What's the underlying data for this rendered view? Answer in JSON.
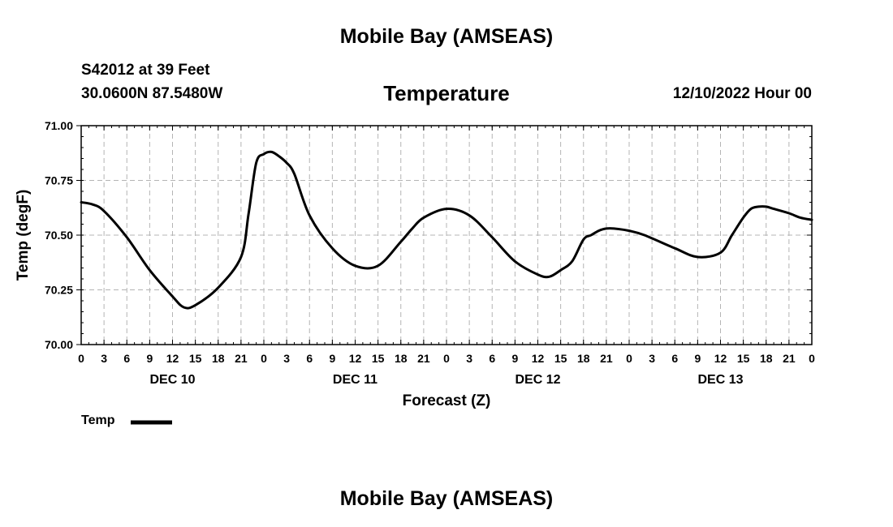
{
  "header": {
    "title": "Mobile Bay (AMSEAS)",
    "station": "S42012 at 39 Feet",
    "coords": "30.0600N  87.5480W",
    "forecast_time": "12/10/2022 Hour 00",
    "footer_title": "Mobile Bay (AMSEAS)"
  },
  "chart_data": {
    "type": "line",
    "title": "Temperature",
    "xlabel": "Forecast (Z)",
    "ylabel": "Temp (degF)",
    "ylim": [
      70.0,
      71.0
    ],
    "y_ticks": [
      "70.00",
      "70.25",
      "70.50",
      "70.75",
      "71.00"
    ],
    "x_range_hours": [
      0,
      96
    ],
    "x_tick_labels": [
      "0",
      "3",
      "6",
      "9",
      "12",
      "15",
      "18",
      "21",
      "0",
      "3",
      "6",
      "9",
      "12",
      "15",
      "18",
      "21",
      "0",
      "3",
      "6",
      "9",
      "12",
      "15",
      "18",
      "21",
      "0",
      "3",
      "6",
      "9",
      "12",
      "15",
      "18",
      "21",
      "0"
    ],
    "day_labels": [
      "DEC 10",
      "DEC 11",
      "DEC 12",
      "DEC 13"
    ],
    "grid": true,
    "legend": "bottom-left",
    "series": [
      {
        "name": "Temp",
        "color": "#000000",
        "x": [
          0,
          1.5,
          3,
          6,
          9,
          12,
          13.5,
          15,
          18,
          21,
          22,
          23,
          24,
          25,
          26,
          27,
          28,
          30,
          33,
          36,
          39,
          42,
          43.5,
          45,
          48,
          51,
          54,
          57,
          60,
          61.5,
          63,
          64.5,
          66,
          67,
          68,
          69,
          70,
          72,
          74,
          78,
          81,
          84,
          85.5,
          87,
          88,
          89,
          90,
          91,
          93,
          94.5,
          96
        ],
        "y": [
          70.65,
          70.64,
          70.61,
          70.49,
          70.34,
          70.22,
          70.17,
          70.18,
          70.26,
          70.4,
          70.6,
          70.83,
          70.87,
          70.88,
          70.86,
          70.83,
          70.78,
          70.59,
          70.44,
          70.36,
          70.36,
          70.47,
          70.53,
          70.58,
          70.62,
          70.59,
          70.49,
          70.38,
          70.32,
          70.31,
          70.34,
          70.38,
          70.48,
          70.5,
          70.52,
          70.53,
          70.53,
          70.52,
          70.5,
          70.44,
          70.4,
          70.42,
          70.5,
          70.58,
          70.62,
          70.63,
          70.63,
          70.62,
          70.6,
          70.58,
          70.57
        ]
      }
    ]
  },
  "legend": {
    "label": "Temp"
  }
}
